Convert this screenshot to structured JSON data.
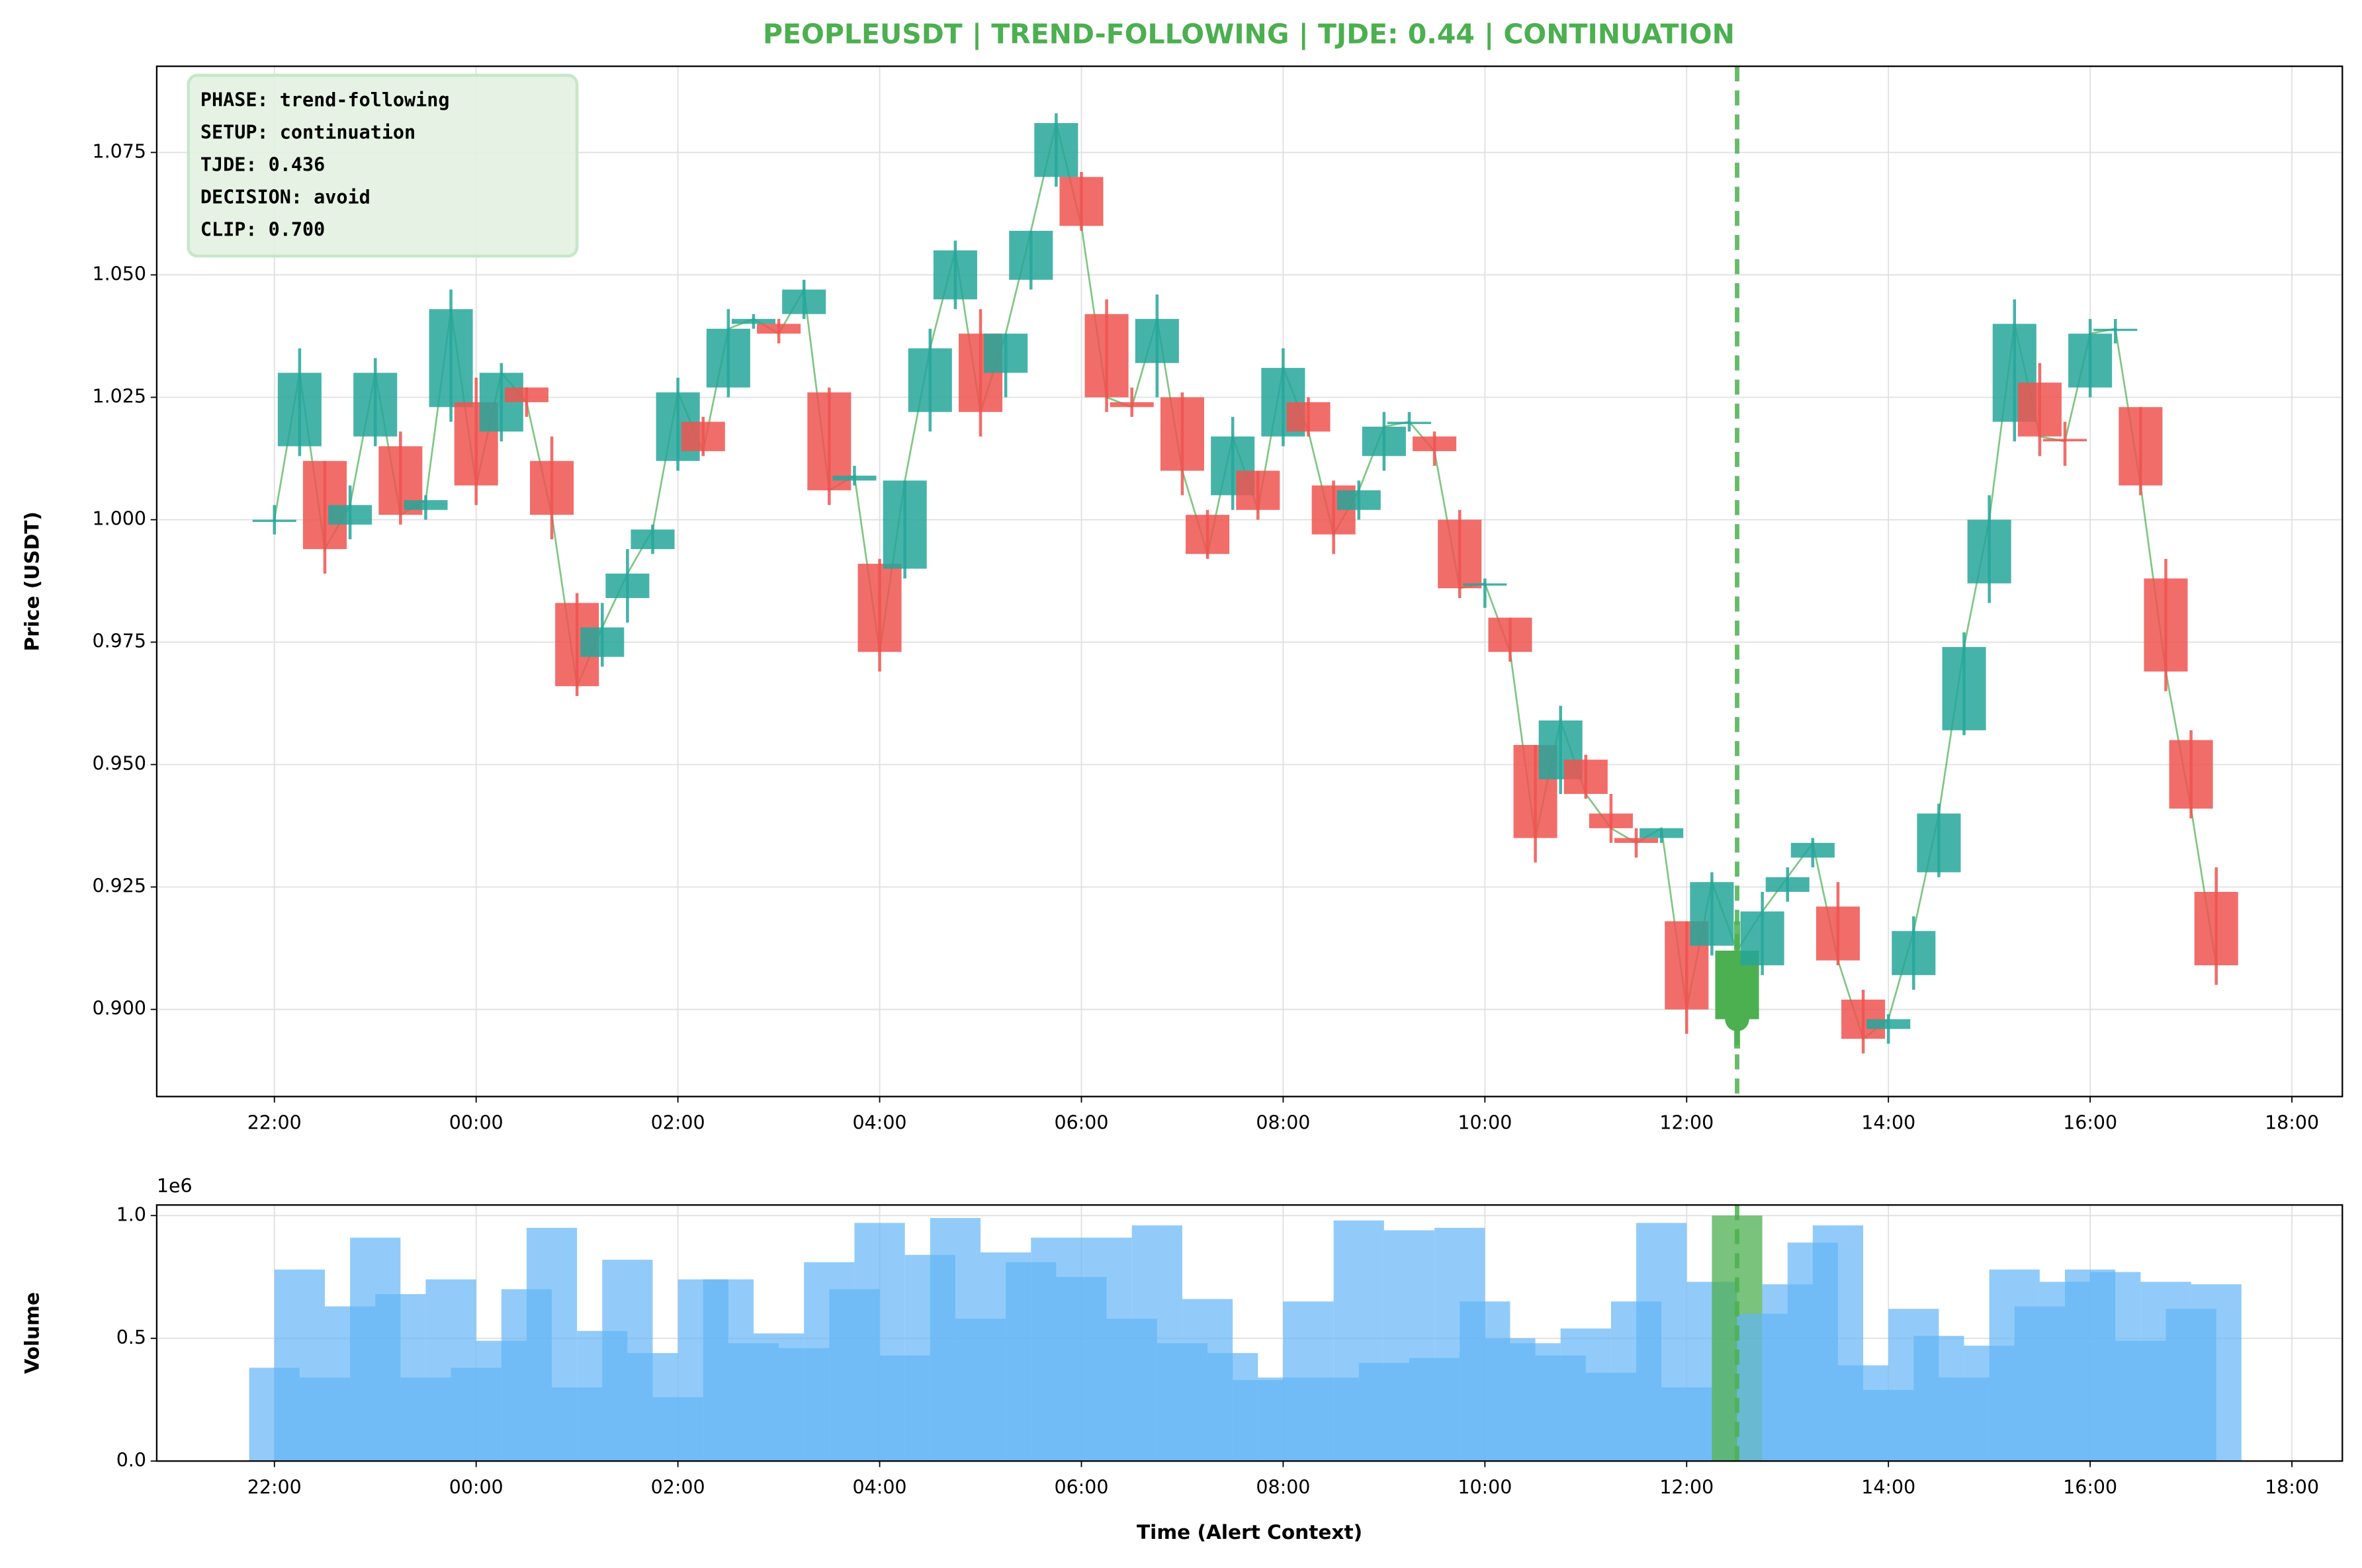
{
  "chart_data": [
    {
      "type": "candlestick",
      "title": "PEOPLEUSDT | TREND-FOLLOWING | TJDE: 0.44 | CONTINUATION",
      "ylabel": "Price (USDT)",
      "annotation": [
        "PHASE: trend-following",
        "SETUP: continuation",
        "TJDE: 0.436",
        "DECISION: avoid",
        "CLIP: 0.700"
      ],
      "x": [
        "22:00",
        "22:15",
        "22:30",
        "22:45",
        "23:00",
        "23:15",
        "23:30",
        "23:45",
        "00:00",
        "00:15",
        "00:30",
        "00:45",
        "01:00",
        "01:15",
        "01:30",
        "01:45",
        "02:00",
        "02:15",
        "02:30",
        "02:45",
        "03:00",
        "03:15",
        "03:30",
        "03:45",
        "04:00",
        "04:15",
        "04:30",
        "04:45",
        "05:00",
        "05:15",
        "05:30",
        "05:45",
        "06:00",
        "06:15",
        "06:30",
        "06:45",
        "07:00",
        "07:15",
        "07:30",
        "07:45",
        "08:00",
        "08:15",
        "08:30",
        "08:45",
        "09:00",
        "09:15",
        "09:30",
        "09:45",
        "10:00",
        "10:15",
        "10:30",
        "10:45",
        "11:00",
        "11:15",
        "11:30",
        "11:45",
        "12:00",
        "12:15",
        "12:30",
        "12:45",
        "13:00",
        "13:15",
        "13:30",
        "13:45",
        "14:00",
        "14:15",
        "14:30",
        "14:45",
        "15:00",
        "15:15",
        "15:30",
        "15:45",
        "16:00",
        "16:15",
        "16:30",
        "16:45",
        "17:00",
        "17:15"
      ],
      "open": [
        1.0,
        1.015,
        1.012,
        0.999,
        1.017,
        1.015,
        1.002,
        1.023,
        1.024,
        1.018,
        1.027,
        1.012,
        0.983,
        0.972,
        0.984,
        0.994,
        1.012,
        1.02,
        1.027,
        1.04,
        1.04,
        1.042,
        1.026,
        1.008,
        0.991,
        0.99,
        1.022,
        1.045,
        1.038,
        1.03,
        1.049,
        1.07,
        1.07,
        1.042,
        1.024,
        1.032,
        1.025,
        1.001,
        1.005,
        1.01,
        1.017,
        1.024,
        1.007,
        1.002,
        1.013,
        1.02,
        1.017,
        1.0,
        0.987,
        0.98,
        0.954,
        0.947,
        0.951,
        0.94,
        0.935,
        0.935,
        0.918,
        0.913,
        0.898,
        0.909,
        0.924,
        0.931,
        0.921,
        0.902,
        0.896,
        0.907,
        0.928,
        0.957,
        0.987,
        1.02,
        1.028,
        1.0165,
        1.027,
        1.039,
        1.023,
        0.988,
        0.955,
        0.924
      ],
      "high": [
        1.003,
        1.035,
        1.012,
        1.007,
        1.033,
        1.018,
        1.005,
        1.047,
        1.029,
        1.032,
        1.027,
        1.017,
        0.985,
        0.983,
        0.994,
        0.999,
        1.029,
        1.021,
        1.043,
        1.042,
        1.041,
        1.049,
        1.027,
        1.011,
        0.992,
        1.008,
        1.039,
        1.057,
        1.043,
        1.038,
        1.059,
        1.083,
        1.071,
        1.045,
        1.027,
        1.046,
        1.026,
        1.002,
        1.021,
        1.01,
        1.035,
        1.025,
        1.008,
        1.008,
        1.022,
        1.022,
        1.018,
        1.002,
        0.988,
        0.98,
        0.954,
        0.962,
        0.952,
        0.944,
        0.937,
        0.937,
        0.918,
        0.928,
        0.918,
        0.924,
        0.929,
        0.935,
        0.926,
        0.904,
        0.899,
        0.919,
        0.942,
        0.977,
        1.005,
        1.045,
        1.032,
        1.02,
        1.041,
        1.041,
        1.023,
        0.992,
        0.957,
        0.929
      ],
      "low": [
        0.997,
        1.013,
        0.989,
        0.996,
        1.015,
        0.999,
        1.0,
        1.02,
        1.003,
        1.016,
        1.021,
        0.996,
        0.964,
        0.97,
        0.979,
        0.993,
        1.01,
        1.013,
        1.025,
        1.039,
        1.036,
        1.041,
        1.003,
        1.007,
        0.969,
        0.988,
        1.018,
        1.043,
        1.017,
        1.025,
        1.047,
        1.068,
        1.059,
        1.022,
        1.021,
        1.025,
        1.005,
        0.992,
        1.002,
        1.0,
        1.015,
        1.017,
        0.993,
        1.0,
        1.01,
        1.018,
        1.011,
        0.984,
        0.982,
        0.971,
        0.93,
        0.944,
        0.943,
        0.934,
        0.931,
        0.934,
        0.895,
        0.911,
        0.892,
        0.907,
        0.922,
        0.929,
        0.909,
        0.891,
        0.893,
        0.904,
        0.927,
        0.956,
        0.983,
        1.016,
        1.013,
        1.011,
        1.025,
        1.036,
        1.005,
        0.965,
        0.939,
        0.905
      ],
      "close": [
        1.0,
        1.03,
        0.994,
        1.003,
        1.03,
        1.001,
        1.004,
        1.043,
        1.007,
        1.03,
        1.024,
        1.001,
        0.966,
        0.978,
        0.989,
        0.998,
        1.026,
        1.014,
        1.039,
        1.041,
        1.038,
        1.047,
        1.006,
        1.009,
        0.973,
        1.008,
        1.035,
        1.055,
        1.022,
        1.038,
        1.059,
        1.081,
        1.06,
        1.025,
        1.023,
        1.041,
        1.01,
        0.993,
        1.017,
        1.002,
        1.031,
        1.018,
        0.997,
        1.006,
        1.019,
        1.02,
        1.014,
        0.986,
        0.987,
        0.973,
        0.935,
        0.959,
        0.944,
        0.937,
        0.934,
        0.937,
        0.9,
        0.926,
        0.912,
        0.92,
        0.927,
        0.934,
        0.91,
        0.894,
        0.898,
        0.916,
        0.94,
        0.974,
        1.0,
        1.04,
        1.017,
        1.016,
        1.038,
        1.039,
        1.007,
        0.969,
        0.941,
        0.909
      ],
      "up_color": "#26a69a",
      "down_color": "#ef5350",
      "line_color": "#4caf50",
      "highlight_color": "#4caf50",
      "alert_time": "12:30",
      "xlim": [
        "20:50",
        "18:30"
      ],
      "xticks": [
        "22:00",
        "00:00",
        "02:00",
        "04:00",
        "06:00",
        "08:00",
        "10:00",
        "12:00",
        "14:00",
        "16:00",
        "18:00"
      ],
      "ylim": [
        0.8822,
        1.0926
      ],
      "yticks": [
        {
          "value": 0.9,
          "label": "0.900"
        },
        {
          "value": 0.925,
          "label": "0.925"
        },
        {
          "value": 0.95,
          "label": "0.950"
        },
        {
          "value": 0.975,
          "label": "0.975"
        },
        {
          "value": 1.0,
          "label": "1.000"
        },
        {
          "value": 1.025,
          "label": "1.025"
        },
        {
          "value": 1.05,
          "label": "1.050"
        },
        {
          "value": 1.075,
          "label": "1.075"
        }
      ],
      "grid": true
    },
    {
      "type": "bar",
      "ylabel": "Volume",
      "xlabel": "Time (Alert Context)",
      "offset_label": "1e6",
      "x": [
        "22:00",
        "22:15",
        "22:30",
        "22:45",
        "23:00",
        "23:15",
        "23:30",
        "23:45",
        "00:00",
        "00:15",
        "00:30",
        "00:45",
        "01:00",
        "01:15",
        "01:30",
        "01:45",
        "02:00",
        "02:15",
        "02:30",
        "02:45",
        "03:00",
        "03:15",
        "03:30",
        "03:45",
        "04:00",
        "04:15",
        "04:30",
        "04:45",
        "05:00",
        "05:15",
        "05:30",
        "05:45",
        "06:00",
        "06:15",
        "06:30",
        "06:45",
        "07:00",
        "07:15",
        "07:30",
        "07:45",
        "08:00",
        "08:15",
        "08:30",
        "08:45",
        "09:00",
        "09:15",
        "09:30",
        "09:45",
        "10:00",
        "10:15",
        "10:30",
        "10:45",
        "11:00",
        "11:15",
        "11:30",
        "11:45",
        "12:00",
        "12:15",
        "12:30",
        "12:45",
        "13:00",
        "13:15",
        "13:30",
        "13:45",
        "14:00",
        "14:15",
        "14:30",
        "14:45",
        "15:00",
        "15:15",
        "15:30",
        "15:45",
        "16:00",
        "16:15",
        "16:30",
        "16:45",
        "17:00",
        "17:15"
      ],
      "values": [
        0.38,
        0.78,
        0.34,
        0.63,
        0.91,
        0.68,
        0.34,
        0.74,
        0.38,
        0.49,
        0.7,
        0.95,
        0.3,
        0.53,
        0.82,
        0.44,
        0.26,
        0.74,
        0.74,
        0.48,
        0.52,
        0.46,
        0.81,
        0.7,
        0.97,
        0.43,
        0.84,
        0.99,
        0.58,
        0.85,
        0.81,
        0.91,
        0.75,
        0.91,
        0.58,
        0.96,
        0.48,
        0.66,
        0.44,
        0.33,
        0.34,
        0.65,
        0.34,
        0.98,
        0.4,
        0.94,
        0.42,
        0.95,
        0.65,
        0.5,
        0.48,
        0.43,
        0.54,
        0.36,
        0.65,
        0.97,
        0.3,
        0.73,
        1.0,
        0.6,
        0.72,
        0.89,
        0.96,
        0.39,
        0.29,
        0.62,
        0.51,
        0.34,
        0.47,
        0.78,
        0.63,
        0.73,
        0.78,
        0.77,
        0.49,
        0.73,
        0.62,
        0.72
      ],
      "color": "#64b5f6",
      "highlight_color": "#4caf50",
      "alert_time": "12:30",
      "xlim": [
        "20:50",
        "18:30"
      ],
      "xticks": [
        "22:00",
        "00:00",
        "02:00",
        "04:00",
        "06:00",
        "08:00",
        "10:00",
        "12:00",
        "14:00",
        "16:00",
        "18:00"
      ],
      "ylim": [
        0,
        1.043
      ],
      "yticks": [
        {
          "value": 0,
          "label": "0.0"
        },
        0.5,
        {
          "value": 1,
          "label": "1.0"
        }
      ],
      "grid": true
    }
  ]
}
